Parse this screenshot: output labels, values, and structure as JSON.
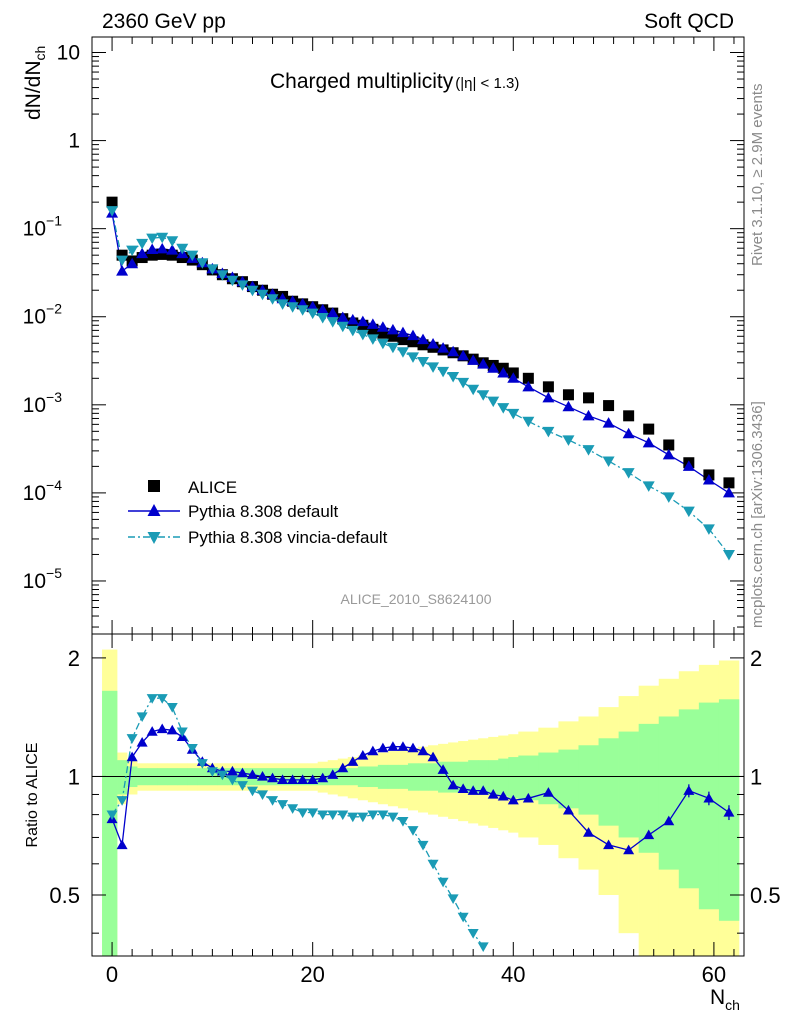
{
  "header": {
    "left": "2360 GeV pp",
    "right": "Soft QCD"
  },
  "side_labels": {
    "rivet": "Rivet 3.1.10, ≥ 2.9M events",
    "mcplots": "mcplots.cern.ch [arXiv:1306.3436]"
  },
  "chart_data": [
    {
      "type": "scatter",
      "panel": "main",
      "title_main": "Charged multiplicity",
      "title_sub": "(|η| < 1.3)",
      "ylabel_main": "dN/dN",
      "ylabel_sub": "ch",
      "xlabel_main": "N",
      "xlabel_sub": "ch",
      "watermark": "ALICE_2010_S8624100",
      "yscale": "log",
      "xlim": [
        -2,
        63
      ],
      "ylim": [
        2.5e-06,
        15
      ],
      "y_ticks": [
        {
          "value": 1e-05,
          "base": "10",
          "exp": "−5"
        },
        {
          "value": 0.0001,
          "base": "10",
          "exp": "−4"
        },
        {
          "value": 0.001,
          "base": "10",
          "exp": "−3"
        },
        {
          "value": 0.01,
          "base": "10",
          "exp": "−2"
        },
        {
          "value": 0.1,
          "base": "10",
          "exp": "−1"
        },
        {
          "value": 1,
          "base": "1",
          "exp": ""
        },
        {
          "value": 10,
          "base": "10",
          "exp": ""
        }
      ],
      "legend": [
        "ALICE",
        "Pythia 8.308 default",
        "Pythia 8.308 vincia-default"
      ],
      "legend_position": "bottom-left",
      "series": [
        {
          "name": "ALICE",
          "marker": "square",
          "color": "#000000",
          "x": [
            0,
            1,
            2,
            3,
            4,
            5,
            6,
            7,
            8,
            9,
            10,
            11,
            12,
            13,
            14,
            15,
            16,
            17,
            18,
            19,
            20,
            21,
            22,
            23,
            24,
            25,
            26,
            27,
            28,
            29,
            30,
            31,
            32,
            33,
            34,
            35,
            36,
            37,
            38,
            39,
            40,
            41.5,
            43.5,
            45.5,
            47.5,
            49.5,
            51.5,
            53.5,
            55.5,
            57.5,
            59.5,
            61.5
          ],
          "y": [
            0.2,
            0.05,
            0.043,
            0.047,
            0.05,
            0.051,
            0.05,
            0.047,
            0.044,
            0.039,
            0.034,
            0.03,
            0.027,
            0.025,
            0.022,
            0.02,
            0.018,
            0.017,
            0.015,
            0.014,
            0.013,
            0.012,
            0.011,
            0.0095,
            0.0085,
            0.008,
            0.0072,
            0.0065,
            0.006,
            0.0055,
            0.0052,
            0.0048,
            0.0045,
            0.0042,
            0.0039,
            0.0036,
            0.0033,
            0.003,
            0.0028,
            0.0026,
            0.0023,
            0.002,
            0.0016,
            0.0013,
            0.0012,
            0.00098,
            0.00075,
            0.00053,
            0.00035,
            0.00022,
            0.00016,
            0.00013
          ]
        },
        {
          "name": "Pythia 8.308 default",
          "marker": "triangle-up",
          "color": "#0000cc",
          "x": [
            0,
            1,
            2,
            3,
            4,
            5,
            6,
            7,
            8,
            9,
            10,
            11,
            12,
            13,
            14,
            15,
            16,
            17,
            18,
            19,
            20,
            21,
            22,
            23,
            24,
            25,
            26,
            27,
            28,
            29,
            30,
            31,
            32,
            33,
            34,
            35,
            36,
            37,
            38,
            39,
            40,
            41.5,
            43.5,
            45.5,
            47.5,
            49.5,
            51.5,
            53.5,
            55.5,
            57.5,
            59.5,
            61.5
          ],
          "y": [
            0.15,
            0.033,
            0.04,
            0.052,
            0.058,
            0.059,
            0.057,
            0.052,
            0.046,
            0.041,
            0.035,
            0.031,
            0.028,
            0.025,
            0.022,
            0.02,
            0.018,
            0.016,
            0.015,
            0.014,
            0.013,
            0.012,
            0.011,
            0.0098,
            0.0092,
            0.0088,
            0.0082,
            0.0076,
            0.0071,
            0.0066,
            0.0061,
            0.0055,
            0.0049,
            0.0044,
            0.004,
            0.0036,
            0.0032,
            0.0029,
            0.0026,
            0.0023,
            0.002,
            0.0016,
            0.0012,
            0.00095,
            0.00075,
            0.00062,
            0.00047,
            0.00037,
            0.00027,
            0.0002,
            0.00014,
            0.0001
          ]
        },
        {
          "name": "Pythia 8.308 vincia-default",
          "marker": "triangle-down",
          "color": "#1a9bb5",
          "x": [
            0,
            1,
            2,
            3,
            4,
            5,
            6,
            7,
            8,
            9,
            10,
            11,
            12,
            13,
            14,
            15,
            16,
            17,
            18,
            19,
            20,
            21,
            22,
            23,
            24,
            25,
            26,
            27,
            28,
            29,
            30,
            31,
            32,
            33,
            34,
            35,
            36,
            37,
            38,
            39,
            40,
            41.5,
            43.5,
            45.5,
            47.5,
            49.5,
            51.5,
            53.5,
            55.5,
            57.5,
            59.5,
            61.5
          ],
          "y": [
            0.16,
            0.044,
            0.057,
            0.068,
            0.078,
            0.08,
            0.073,
            0.06,
            0.05,
            0.041,
            0.035,
            0.03,
            0.026,
            0.023,
            0.02,
            0.018,
            0.016,
            0.014,
            0.013,
            0.012,
            0.011,
            0.0098,
            0.0088,
            0.0078,
            0.007,
            0.0063,
            0.0056,
            0.005,
            0.0045,
            0.004,
            0.0035,
            0.0031,
            0.0027,
            0.0024,
            0.0021,
            0.0018,
            0.0015,
            0.0013,
            0.0011,
            0.00093,
            0.0008,
            0.00065,
            0.0005,
            0.0004,
            0.00031,
            0.00023,
            0.00017,
            0.00012,
            9e-05,
            6.2e-05,
            3.9e-05,
            2e-05
          ]
        }
      ]
    },
    {
      "type": "line",
      "panel": "ratio",
      "ylabel": "Ratio to ALICE",
      "xlim": [
        -2,
        63
      ],
      "ylim": [
        0.35,
        2.3
      ],
      "x_ticks": [
        0,
        20,
        40,
        60
      ],
      "y_ticks": [
        0.5,
        1,
        2
      ],
      "reference_line": 1,
      "bands": {
        "edges": [
          -1,
          0.5,
          1.5,
          2.5,
          3.5,
          4.5,
          5.5,
          6.5,
          7.5,
          8.5,
          9.5,
          10.5,
          11.5,
          12.5,
          13.5,
          14.5,
          15.5,
          16.5,
          17.5,
          18.5,
          19.5,
          20.5,
          21.5,
          22.5,
          23.5,
          24.5,
          25.5,
          26.5,
          27.5,
          28.5,
          29.5,
          30.5,
          31.5,
          32.5,
          33.5,
          34.5,
          35.5,
          36.5,
          37.5,
          38.5,
          39.5,
          40.5,
          42.5,
          44.5,
          46.5,
          48.5,
          50.5,
          52.5,
          54.5,
          56.5,
          58.5,
          60.5,
          62.5
        ],
        "stat": [
          0.65,
          0.1,
          0.06,
          0.05,
          0.05,
          0.05,
          0.05,
          0.05,
          0.05,
          0.05,
          0.05,
          0.05,
          0.05,
          0.05,
          0.05,
          0.05,
          0.05,
          0.05,
          0.05,
          0.05,
          0.05,
          0.05,
          0.05,
          0.05,
          0.05,
          0.06,
          0.06,
          0.07,
          0.07,
          0.07,
          0.08,
          0.08,
          0.08,
          0.09,
          0.09,
          0.09,
          0.1,
          0.1,
          0.1,
          0.11,
          0.12,
          0.13,
          0.15,
          0.17,
          0.2,
          0.25,
          0.3,
          0.36,
          0.42,
          0.48,
          0.54,
          0.57
        ],
        "total": [
          1.1,
          0.15,
          0.1,
          0.08,
          0.08,
          0.08,
          0.08,
          0.08,
          0.08,
          0.08,
          0.08,
          0.08,
          0.08,
          0.08,
          0.08,
          0.08,
          0.08,
          0.08,
          0.08,
          0.08,
          0.08,
          0.09,
          0.1,
          0.11,
          0.12,
          0.13,
          0.14,
          0.15,
          0.16,
          0.17,
          0.18,
          0.19,
          0.2,
          0.21,
          0.22,
          0.23,
          0.24,
          0.25,
          0.26,
          0.27,
          0.28,
          0.3,
          0.33,
          0.38,
          0.42,
          0.5,
          0.6,
          0.7,
          0.77,
          0.85,
          0.92,
          0.97
        ]
      },
      "series": [
        {
          "name": "Pythia 8.308 default",
          "color": "#0000cc",
          "x": [
            0,
            1,
            2,
            3,
            4,
            5,
            6,
            7,
            8,
            9,
            10,
            11,
            12,
            13,
            14,
            15,
            16,
            17,
            18,
            19,
            20,
            21,
            22,
            23,
            24,
            25,
            26,
            27,
            28,
            29,
            30,
            31,
            32,
            33,
            34,
            35,
            36,
            37,
            38,
            39,
            40,
            41.5,
            43.5,
            45.5,
            47.5,
            49.5,
            51.5,
            53.5,
            55.5,
            57.5,
            59.5,
            61.5
          ],
          "y": [
            0.78,
            0.67,
            1.12,
            1.22,
            1.3,
            1.32,
            1.31,
            1.26,
            1.17,
            1.09,
            1.05,
            1.03,
            1.03,
            1.02,
            1.01,
            1.0,
            0.99,
            0.98,
            0.98,
            0.98,
            0.98,
            0.99,
            1.01,
            1.05,
            1.09,
            1.13,
            1.16,
            1.18,
            1.19,
            1.19,
            1.18,
            1.16,
            1.12,
            1.04,
            0.95,
            0.93,
            0.92,
            0.92,
            0.9,
            0.89,
            0.87,
            0.88,
            0.91,
            0.82,
            0.72,
            0.67,
            0.65,
            0.71,
            0.77,
            0.92,
            0.88,
            0.81
          ]
        },
        {
          "name": "Pythia 8.308 vincia-default",
          "color": "#1a9bb5",
          "x": [
            0,
            1,
            2,
            3,
            4,
            5,
            6,
            7,
            8,
            9,
            10,
            11,
            12,
            13,
            14,
            15,
            16,
            17,
            18,
            19,
            20,
            21,
            22,
            23,
            24,
            25,
            26,
            27,
            28,
            29,
            30,
            31,
            32,
            33,
            34,
            35,
            36,
            37
          ],
          "y": [
            0.8,
            0.87,
            1.25,
            1.42,
            1.58,
            1.58,
            1.5,
            1.3,
            1.18,
            1.08,
            1.03,
            1.01,
            0.98,
            0.95,
            0.92,
            0.9,
            0.87,
            0.85,
            0.83,
            0.81,
            0.81,
            0.8,
            0.8,
            0.8,
            0.79,
            0.79,
            0.8,
            0.8,
            0.79,
            0.77,
            0.73,
            0.67,
            0.6,
            0.54,
            0.49,
            0.44,
            0.4,
            0.37
          ]
        }
      ]
    }
  ]
}
